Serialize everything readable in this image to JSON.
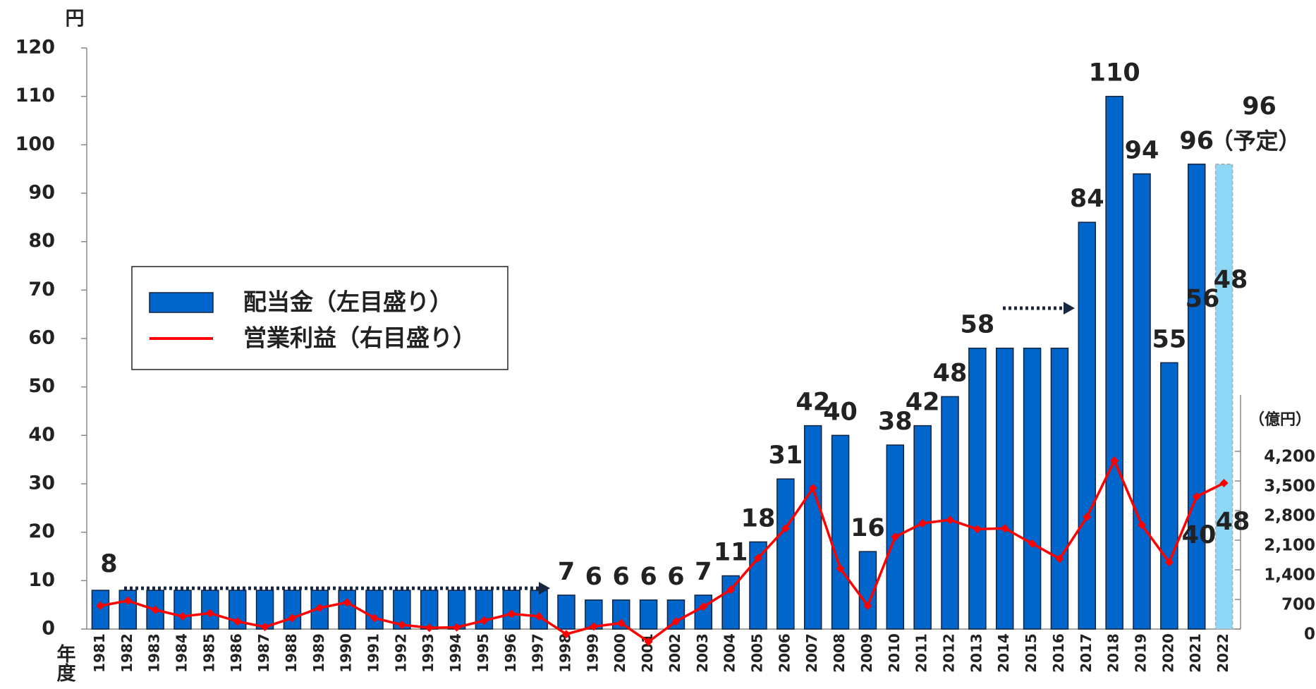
{
  "chart_data": {
    "type": "bar+line",
    "y_unit": "円",
    "y2_unit": "（億円）",
    "x_label": "年度",
    "categories": [
      "1981",
      "1982",
      "1983",
      "1984",
      "1985",
      "1986",
      "1987",
      "1988",
      "1989",
      "1990",
      "1991",
      "1992",
      "1993",
      "1994",
      "1995",
      "1996",
      "1997",
      "1998",
      "1999",
      "2000",
      "2001",
      "2002",
      "2003",
      "2004",
      "2005",
      "2006",
      "2007",
      "2008",
      "2009",
      "2010",
      "2011",
      "2012",
      "2013",
      "2014",
      "2015",
      "2016",
      "2017",
      "2018",
      "2019",
      "2020",
      "2021",
      "2022"
    ],
    "series": [
      {
        "name": "配当金（左目盛り）",
        "type": "bar",
        "color": "#0066cc",
        "planned_color": "#8fd8f5",
        "values": [
          8,
          8,
          8,
          8,
          8,
          8,
          8,
          8,
          8,
          8,
          8,
          8,
          8,
          8,
          8,
          8,
          8,
          7,
          6,
          6,
          6,
          6,
          7,
          11,
          18,
          31,
          42,
          40,
          16,
          38,
          42,
          48,
          58,
          58,
          58,
          58,
          84,
          110,
          94,
          55,
          96,
          96
        ],
        "value_labels": [
          "8",
          null,
          null,
          null,
          null,
          null,
          null,
          null,
          null,
          null,
          null,
          null,
          null,
          null,
          null,
          null,
          null,
          "7",
          "6",
          "6",
          "6",
          "6",
          "7",
          "11",
          "18",
          "31",
          "42",
          "40",
          "16",
          "38",
          "42",
          "48",
          "58",
          null,
          null,
          null,
          "84",
          "110",
          "94",
          "55",
          "96",
          "96"
        ]
      },
      {
        "name": "営業利益（右目盛り）",
        "type": "line",
        "axis": "y2",
        "color": "#ff0000",
        "values": [
          550,
          670,
          455,
          300,
          375,
          180,
          50,
          260,
          500,
          630,
          260,
          100,
          30,
          40,
          200,
          360,
          300,
          -120,
          60,
          140,
          -300,
          180,
          530,
          930,
          1680,
          2380,
          3330,
          1430,
          550,
          2180,
          2500,
          2580,
          2360,
          2380,
          2020,
          1660,
          2650,
          3980,
          2460,
          1580,
          3130,
          3450
        ]
      }
    ],
    "planned_label": "（予定）",
    "annotations": [
      "56",
      "48",
      "40",
      "48"
    ],
    "ylim": [
      0,
      120
    ],
    "yticks": [
      0,
      10,
      20,
      30,
      40,
      50,
      60,
      70,
      80,
      90,
      100,
      110,
      120
    ],
    "y2lim": [
      0,
      4200
    ],
    "y2ticks": [
      0,
      700,
      {
        "value": 1400,
        "label": "1,400"
      },
      {
        "value": 2100,
        "label": "2,100"
      },
      {
        "value": 2800,
        "label": "2,800"
      },
      {
        "value": 3500,
        "label": "3,500"
      },
      {
        "value": 4200,
        "label": "4,200"
      }
    ]
  }
}
